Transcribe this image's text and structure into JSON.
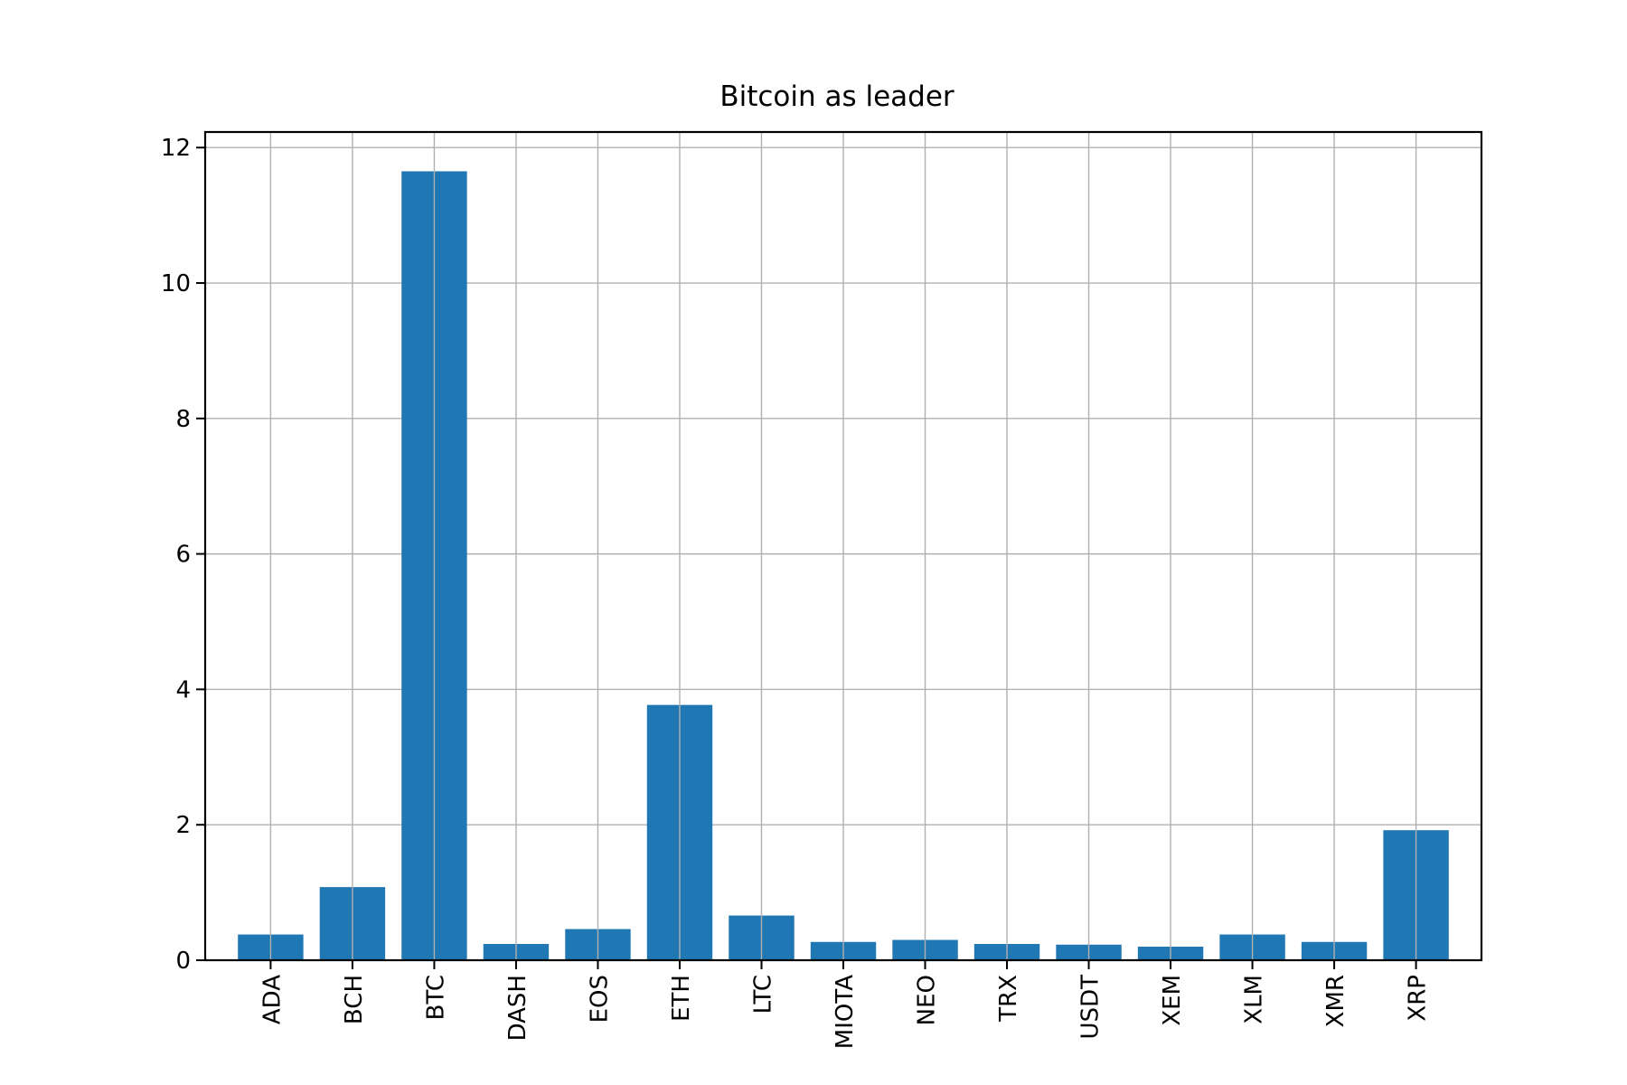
{
  "chart_data": {
    "type": "bar",
    "title": "Bitcoin as leader",
    "xlabel": "",
    "ylabel": "",
    "categories": [
      "ADA",
      "BCH",
      "BTC",
      "DASH",
      "EOS",
      "ETH",
      "LTC",
      "MIOTA",
      "NEO",
      "TRX",
      "USDT",
      "XEM",
      "XLM",
      "XMR",
      "XRP"
    ],
    "values": [
      0.38,
      1.08,
      11.65,
      0.24,
      0.46,
      3.77,
      0.66,
      0.27,
      0.3,
      0.24,
      0.23,
      0.2,
      0.38,
      0.27,
      1.92
    ],
    "ylim": [
      0,
      12.23
    ],
    "yticks": [
      0,
      2,
      4,
      6,
      8,
      10,
      12
    ],
    "grid": true,
    "legend": "none",
    "bar_color": "#1f77b4",
    "grid_color": "#b0b0b0"
  }
}
